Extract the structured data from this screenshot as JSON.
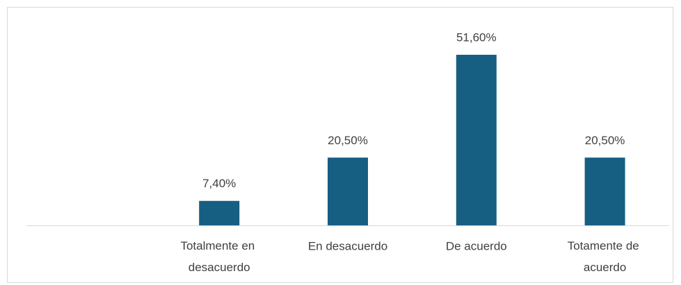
{
  "chart_data": {
    "type": "bar",
    "categories": [
      null,
      "Totalmente en desacuerdo",
      "En desacuerdo",
      "De acuerdo",
      "Totamente de acuerdo"
    ],
    "values": [
      null,
      7.4,
      20.5,
      51.6,
      20.5
    ],
    "value_labels": [
      null,
      "7,40%",
      "20,50%",
      "51,60%",
      "20,50%"
    ],
    "color": "#165f82"
  }
}
